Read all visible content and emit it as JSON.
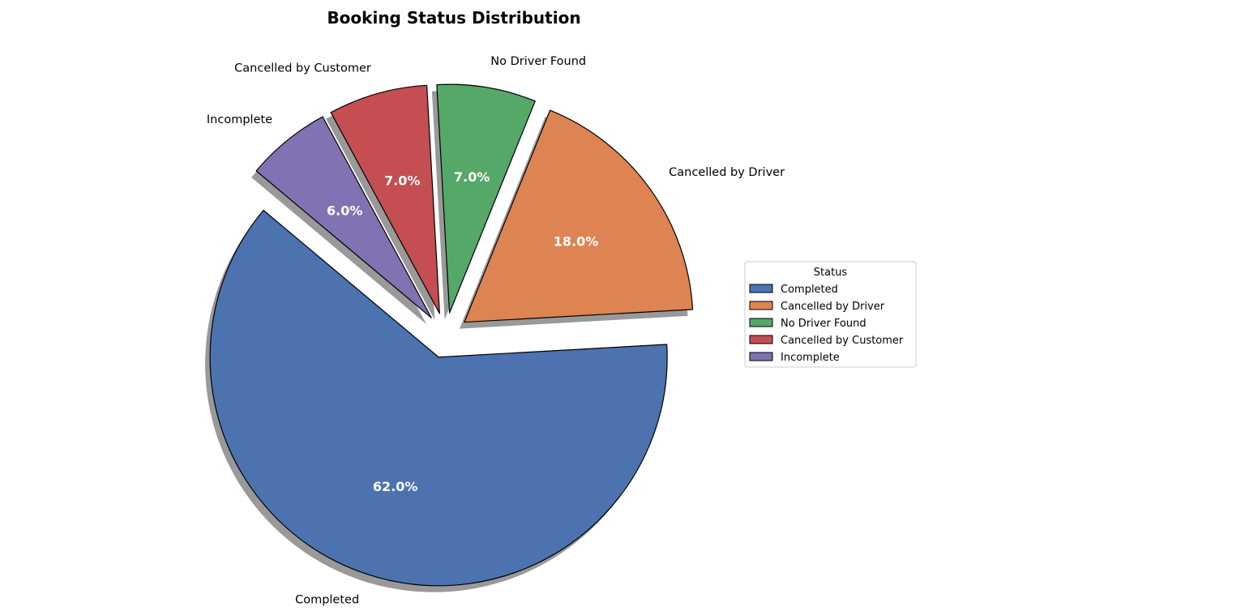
{
  "chart_data": {
    "type": "pie",
    "title": "Booking Status Distribution",
    "slices": [
      {
        "label": "Completed",
        "value": 62.0,
        "pct_label": "62.0%",
        "color": "#4c72b0",
        "exploded": true
      },
      {
        "label": "Cancelled by Driver",
        "value": 18.0,
        "pct_label": "18.0%",
        "color": "#dd8452",
        "exploded": true
      },
      {
        "label": "No Driver Found",
        "value": 7.0,
        "pct_label": "7.0%",
        "color": "#55a868",
        "exploded": true
      },
      {
        "label": "Cancelled by Customer",
        "value": 7.0,
        "pct_label": "7.0%",
        "color": "#c44e52",
        "exploded": true
      },
      {
        "label": "Incomplete",
        "value": 6.0,
        "pct_label": "6.0%",
        "color": "#8172b3",
        "exploded": true
      }
    ],
    "start_angle_deg": 140,
    "direction": "counterclockwise",
    "shadow": true,
    "legend": {
      "title": "Status",
      "placement": "center-right",
      "entries": [
        "Completed",
        "Cancelled by Driver",
        "No Driver Found",
        "Cancelled by Customer",
        "Incomplete"
      ]
    }
  }
}
